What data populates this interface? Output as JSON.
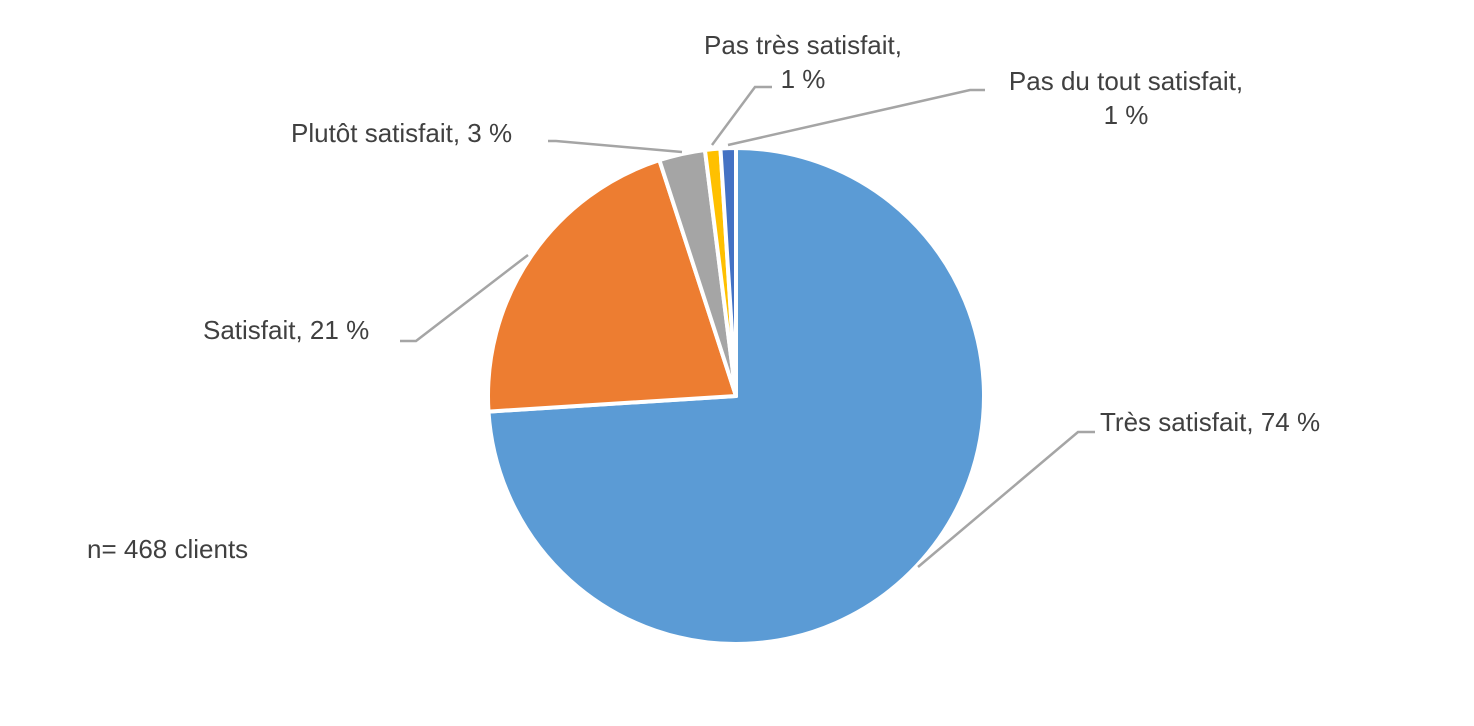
{
  "chart_data": {
    "type": "pie",
    "values": [
      74,
      21,
      3,
      1,
      1
    ],
    "value_labels": [
      "Très satisfait, 74 %",
      "Satisfait, 21 %",
      "Plutôt satisfait, 3 %",
      "Pas très satisfait,\n1 %",
      "Pas du tout satisfait,\n1 %"
    ],
    "colors": [
      "#5b9bd5",
      "#ed7d31",
      "#a5a5a5",
      "#ffc000",
      "#4472c4"
    ],
    "annotation": "n= 468 clients"
  }
}
